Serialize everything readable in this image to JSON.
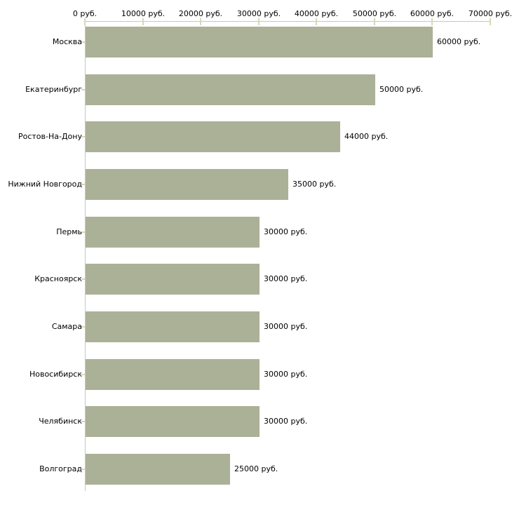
{
  "chart_data": {
    "type": "bar",
    "orientation": "horizontal",
    "title": "",
    "categories": [
      "Москва",
      "Екатеринбург",
      "Ростов-На-Дону",
      "Нижний Новгород",
      "Пермь",
      "Красноярск",
      "Самара",
      "Новосибирск",
      "Челябинск",
      "Волгоград"
    ],
    "values": [
      60000,
      50000,
      44000,
      35000,
      30000,
      30000,
      30000,
      30000,
      30000,
      25000
    ],
    "value_labels": [
      "60000 руб.",
      "50000 руб.",
      "44000 руб.",
      "35000 руб.",
      "30000 руб.",
      "30000 руб.",
      "30000 руб.",
      "30000 руб.",
      "30000 руб.",
      "25000 руб."
    ],
    "x_ticks": [
      0,
      10000,
      20000,
      30000,
      40000,
      50000,
      60000,
      70000
    ],
    "x_tick_labels": [
      "0 руб.",
      "10000 руб.",
      "20000 руб.",
      "30000 руб.",
      "40000 руб.",
      "50000 руб.",
      "60000 руб.",
      "70000 руб."
    ],
    "xlim": [
      0,
      70000
    ],
    "unit_suffix": " руб.",
    "xlabel": "",
    "ylabel": "",
    "grid": false,
    "legend": "none",
    "axis_position": "top",
    "colors": {
      "bar": "#abb196",
      "axis_line": "#c6c6c6",
      "tick_mark": "#d6d8b8",
      "text": "#000000",
      "background": "#ffffff"
    }
  }
}
